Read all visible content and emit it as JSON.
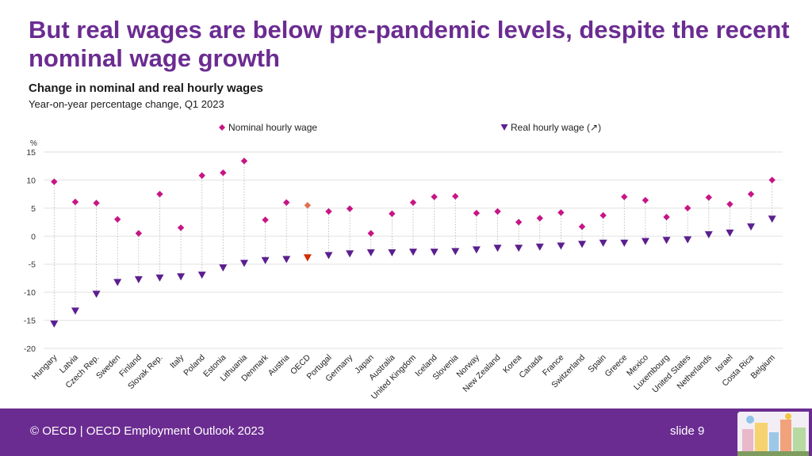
{
  "slide": {
    "headline": "But real wages are below pre-pandemic levels, despite the recent nominal wage growth",
    "footer": "© OECD | OECD Employment Outlook 2023",
    "slide_number": "slide 9"
  },
  "colors": {
    "headline": "#6b2c91",
    "footer_bg": "#6b2c91",
    "nominal": "#c71585",
    "real": "#5b1f8f",
    "oecd_nominal": "#e07050",
    "oecd_real": "#d42a00",
    "grid": "#e2e2e2",
    "dotted_line": "#b0b0b0"
  },
  "chart_data": {
    "type": "scatter",
    "title": "Change in nominal and real hourly wages",
    "subtitle": "Year-on-year percentage change, Q1 2023",
    "ylabel": "%",
    "ylim": [
      -20,
      15
    ],
    "yticks": [
      15,
      10,
      5,
      0,
      -5,
      -10,
      -15,
      -20
    ],
    "grid": true,
    "legend_position": "top",
    "highlight_category": "OECD",
    "categories": [
      "Hungary",
      "Latvia",
      "Czech Rep.",
      "Sweden",
      "Finland",
      "Slovak Rep.",
      "Italy",
      "Poland",
      "Estonia",
      "Lithuania",
      "Denmark",
      "Austria",
      "OECD",
      "Portugal",
      "Germany",
      "Japan",
      "Australia",
      "United Kingdom",
      "Iceland",
      "Slovenia",
      "Norway",
      "New Zealand",
      "Korea",
      "Canada",
      "France",
      "Switzerland",
      "Spain",
      "Greece",
      "Mexico",
      "Luxembourg",
      "United States",
      "Netherlands",
      "Israel",
      "Costa Rica",
      "Belgium"
    ],
    "series": [
      {
        "name": "Nominal hourly wage",
        "marker": "diamond",
        "values": [
          9.7,
          6.1,
          5.9,
          3.0,
          0.5,
          7.5,
          1.5,
          10.8,
          11.3,
          13.4,
          2.9,
          6.0,
          5.5,
          4.4,
          4.9,
          0.5,
          4.0,
          6.0,
          7.0,
          7.1,
          4.1,
          4.4,
          2.5,
          3.2,
          4.2,
          1.7,
          3.7,
          7.0,
          6.4,
          3.4,
          5.0,
          6.9,
          5.7,
          7.5,
          10.0
        ]
      },
      {
        "name": "Real hourly wage (↗)",
        "marker": "triangle-down",
        "values": [
          -15.6,
          -13.3,
          -10.3,
          -8.2,
          -7.7,
          -7.4,
          -7.2,
          -6.9,
          -5.6,
          -4.8,
          -4.3,
          -4.1,
          -3.8,
          -3.4,
          -3.1,
          -2.9,
          -2.9,
          -2.8,
          -2.8,
          -2.7,
          -2.4,
          -2.1,
          -2.1,
          -1.9,
          -1.7,
          -1.4,
          -1.2,
          -1.2,
          -0.9,
          -0.7,
          -0.6,
          0.3,
          0.6,
          1.7,
          3.1
        ]
      }
    ]
  }
}
